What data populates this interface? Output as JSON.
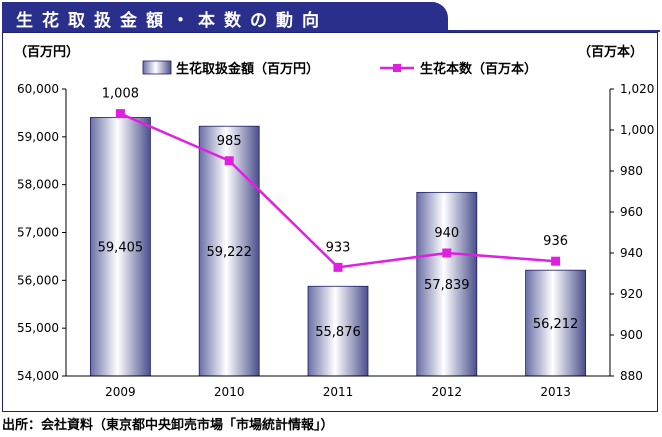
{
  "header": {
    "title": "生花取扱金額・本数の動向"
  },
  "source_note": "出所：会社資料（東京都中央卸売市場「市場統計情報」）",
  "colors": {
    "banner": "#2a2f8c",
    "line": "#e020e0",
    "bar_edge": "#1c1f66"
  },
  "chart_data": {
    "type": "bar+line",
    "categories": [
      "2009",
      "2010",
      "2011",
      "2012",
      "2013"
    ],
    "series": [
      {
        "name": "生花取扱金額（百万円）",
        "type": "bar",
        "axis": "left",
        "values": [
          59405,
          59222,
          55876,
          57839,
          56212
        ],
        "labels": [
          "59,405",
          "59,222",
          "55,876",
          "57,839",
          "56,212"
        ]
      },
      {
        "name": "生花本数（百万本）",
        "type": "line",
        "axis": "right",
        "values": [
          1008,
          985,
          933,
          940,
          936
        ],
        "labels": [
          "1,008",
          "985",
          "933",
          "940",
          "936"
        ]
      }
    ],
    "y_left": {
      "unit": "（百万円）",
      "min": 54000,
      "max": 60000,
      "ticks": [
        54000,
        55000,
        56000,
        57000,
        58000,
        59000,
        60000
      ],
      "tick_labels": [
        "54,000",
        "55,000",
        "56,000",
        "57,000",
        "58,000",
        "59,000",
        "60,000"
      ]
    },
    "y_right": {
      "unit": "（百万本）",
      "min": 880,
      "max": 1020,
      "ticks": [
        880,
        900,
        920,
        940,
        960,
        980,
        1000,
        1020
      ],
      "tick_labels": [
        "880",
        "900",
        "920",
        "940",
        "960",
        "980",
        "1,000",
        "1,020"
      ]
    },
    "grid": false,
    "legend": "top"
  }
}
